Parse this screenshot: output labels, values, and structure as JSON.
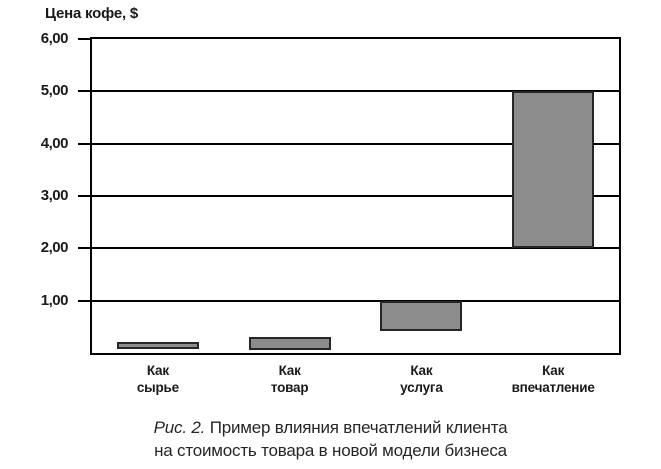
{
  "chart_data": {
    "type": "bar",
    "subtype": "floating-range-bars",
    "title": "Цена кофе, $",
    "xlabel": "",
    "ylabel": "Цена кофе, $",
    "ylim": [
      0,
      6
    ],
    "grid": "horizontal",
    "legend": "none",
    "decimal_separator": ",",
    "yticks": [
      {
        "value": 6,
        "label": "6,00"
      },
      {
        "value": 5,
        "label": "5,00"
      },
      {
        "value": 4,
        "label": "4,00"
      },
      {
        "value": 3,
        "label": "3,00"
      },
      {
        "value": 2,
        "label": "2,00"
      },
      {
        "value": 1,
        "label": "1,00"
      }
    ],
    "categories": [
      "Как сырье",
      "Как товар",
      "Как услуга",
      "Как впечатление"
    ],
    "category_lines": [
      [
        "Как",
        "сырье"
      ],
      [
        "Как",
        "товар"
      ],
      [
        "Как",
        "услуга"
      ],
      [
        "Как",
        "впечатление"
      ]
    ],
    "values": [
      {
        "category": "Как сырье",
        "low": 0.07,
        "high": 0.22
      },
      {
        "category": "Как товар",
        "low": 0.06,
        "high": 0.3
      },
      {
        "category": "Как услуга",
        "low": 0.42,
        "high": 1.0
      },
      {
        "category": "Как впечатление",
        "low": 2.0,
        "high": 5.0
      }
    ],
    "colors": {
      "bar_fill": "#8c8c8c",
      "bar_border": "#262626",
      "axis": "#000000",
      "background": "#ffffff",
      "text": "#1a1a1a"
    }
  },
  "caption": {
    "figure_label": "Рис. 2.",
    "line1": "Пример влияния впечатлений клиента",
    "line2": "на стоимость товара в новой модели бизнеса"
  }
}
